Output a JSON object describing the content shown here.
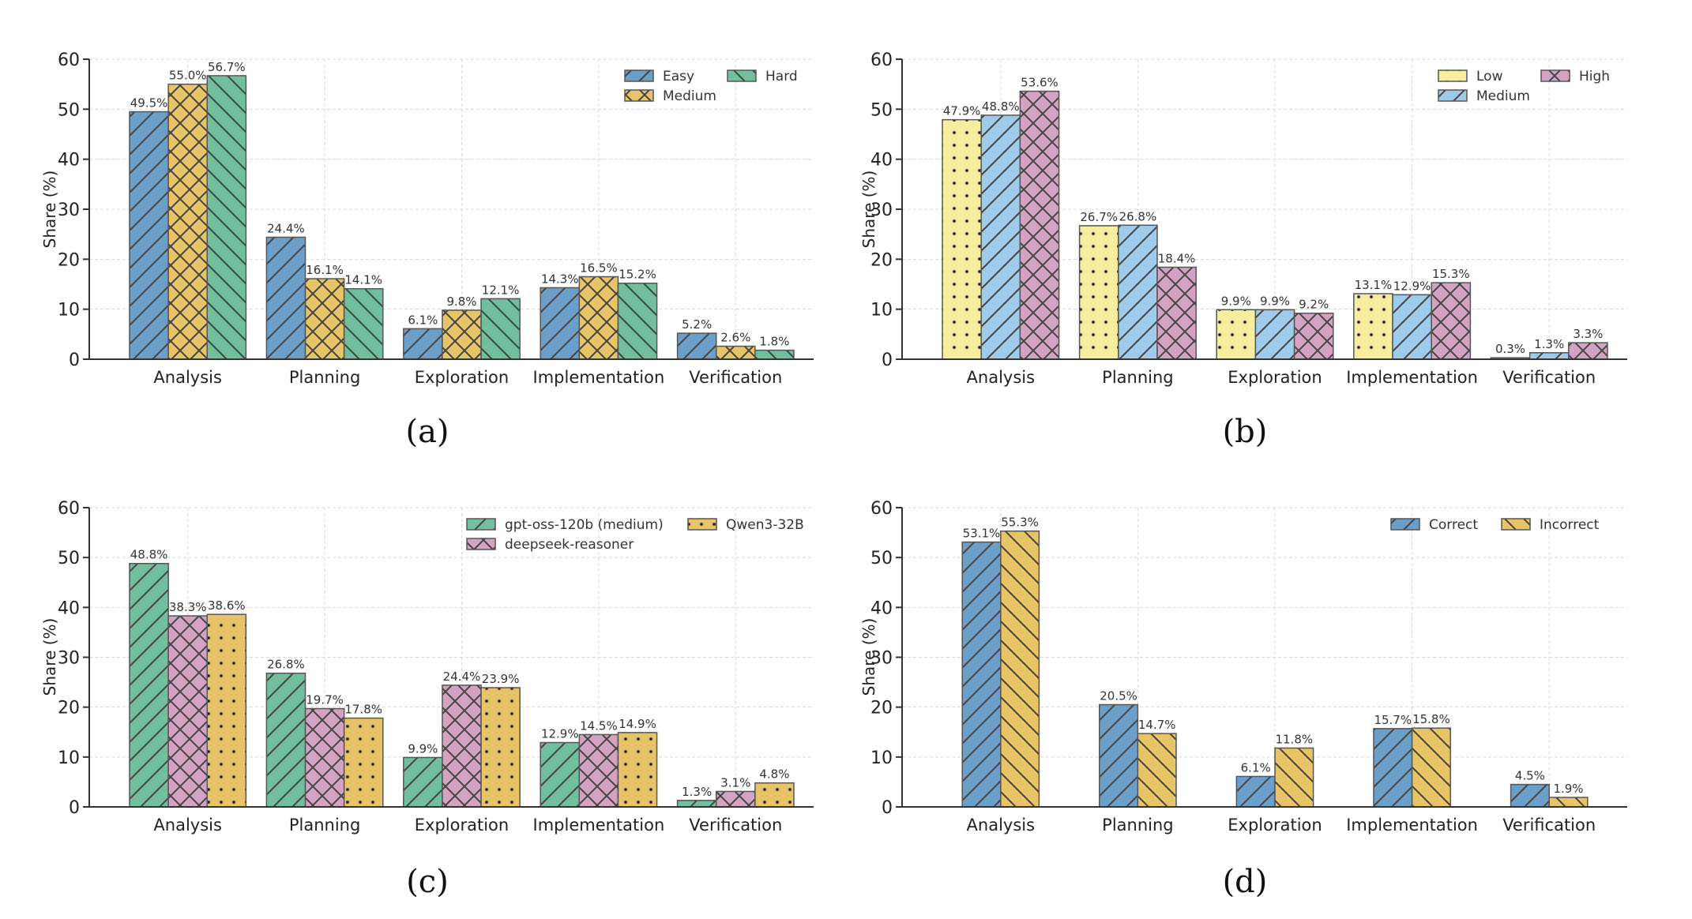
{
  "chart_data": [
    {
      "id": "a",
      "panel_label": "(a)",
      "type": "bar",
      "ylabel": "Share (%)",
      "xlabel": "",
      "ylim": [
        0,
        60
      ],
      "yticks": [
        0,
        10,
        20,
        30,
        40,
        50,
        60
      ],
      "grid": true,
      "legend_position": "top-right",
      "legend_columns": 2,
      "categories": [
        "Analysis",
        "Planning",
        "Exploration",
        "Implementation",
        "Verification"
      ],
      "series": [
        {
          "name": "Easy",
          "color": "#6a9fca",
          "hatch": "forward-diagonal",
          "values": [
            49.5,
            24.4,
            6.1,
            14.3,
            5.2
          ],
          "labels": [
            "49.5%",
            "24.4%",
            "6.1%",
            "14.3%",
            "5.2%"
          ]
        },
        {
          "name": "Medium",
          "color": "#e6c467",
          "hatch": "cross-diagonal",
          "values": [
            55.0,
            16.1,
            9.8,
            16.5,
            2.6
          ],
          "labels": [
            "55.0%",
            "16.1%",
            "9.8%",
            "16.5%",
            "2.6%"
          ]
        },
        {
          "name": "Hard",
          "color": "#72bfa0",
          "hatch": "back-diagonal",
          "values": [
            56.7,
            14.1,
            12.1,
            15.2,
            1.8
          ],
          "labels": [
            "56.7%",
            "14.1%",
            "12.1%",
            "15.2%",
            "1.8%"
          ]
        }
      ]
    },
    {
      "id": "b",
      "panel_label": "(b)",
      "type": "bar",
      "ylabel": "Share (%)",
      "xlabel": "",
      "ylim": [
        0,
        60
      ],
      "yticks": [
        0,
        10,
        20,
        30,
        40,
        50,
        60
      ],
      "grid": true,
      "legend_position": "top-right",
      "legend_columns": 2,
      "categories": [
        "Analysis",
        "Planning",
        "Exploration",
        "Implementation",
        "Verification"
      ],
      "series": [
        {
          "name": "Low",
          "color": "#f8eea0",
          "hatch": "dots",
          "values": [
            47.9,
            26.7,
            9.9,
            13.1,
            0.3
          ],
          "labels": [
            "47.9%",
            "26.7%",
            "9.9%",
            "13.1%",
            "0.3%"
          ]
        },
        {
          "name": "Medium",
          "color": "#9fcbeb",
          "hatch": "forward-diagonal",
          "values": [
            48.8,
            26.8,
            9.9,
            12.9,
            1.3
          ],
          "labels": [
            "48.8%",
            "26.8%",
            "9.9%",
            "12.9%",
            "1.3%"
          ]
        },
        {
          "name": "High",
          "color": "#d4a3c3",
          "hatch": "cross-diagonal",
          "values": [
            53.6,
            18.4,
            9.2,
            15.3,
            3.3
          ],
          "labels": [
            "53.6%",
            "18.4%",
            "9.2%",
            "15.3%",
            "3.3%"
          ]
        }
      ]
    },
    {
      "id": "c",
      "panel_label": "(c)",
      "type": "bar",
      "ylabel": "Share (%)",
      "xlabel": "",
      "ylim": [
        0,
        60
      ],
      "yticks": [
        0,
        10,
        20,
        30,
        40,
        50,
        60
      ],
      "grid": true,
      "legend_position": "top-right",
      "legend_columns": 2,
      "categories": [
        "Analysis",
        "Planning",
        "Exploration",
        "Implementation",
        "Verification"
      ],
      "series": [
        {
          "name": "gpt-oss-120b (medium)",
          "color": "#72bfa0",
          "hatch": "forward-diagonal",
          "values": [
            48.8,
            26.8,
            9.9,
            12.9,
            1.3
          ],
          "labels": [
            "48.8%",
            "26.8%",
            "9.9%",
            "12.9%",
            "1.3%"
          ]
        },
        {
          "name": "deepseek-reasoner",
          "color": "#d4a3c3",
          "hatch": "cross-diagonal",
          "values": [
            38.3,
            19.7,
            24.4,
            14.5,
            3.1
          ],
          "labels": [
            "38.3%",
            "19.7%",
            "24.4%",
            "14.5%",
            "3.1%"
          ]
        },
        {
          "name": "Qwen3-32B",
          "color": "#e6c467",
          "hatch": "dots",
          "values": [
            38.6,
            17.8,
            23.9,
            14.9,
            4.8
          ],
          "labels": [
            "38.6%",
            "17.8%",
            "23.9%",
            "14.9%",
            "4.8%"
          ]
        }
      ]
    },
    {
      "id": "d",
      "panel_label": "(d)",
      "type": "bar",
      "ylabel": "Share (%)",
      "xlabel": "",
      "ylim": [
        0,
        60
      ],
      "yticks": [
        0,
        10,
        20,
        30,
        40,
        50,
        60
      ],
      "grid": true,
      "legend_position": "top-right",
      "legend_columns": 2,
      "categories": [
        "Analysis",
        "Planning",
        "Exploration",
        "Implementation",
        "Verification"
      ],
      "series": [
        {
          "name": "Correct",
          "color": "#6a9fca",
          "hatch": "forward-diagonal",
          "values": [
            53.1,
            20.5,
            6.1,
            15.7,
            4.5
          ],
          "labels": [
            "53.1%",
            "20.5%",
            "6.1%",
            "15.7%",
            "4.5%"
          ]
        },
        {
          "name": "Incorrect",
          "color": "#e6c467",
          "hatch": "back-diagonal",
          "values": [
            55.3,
            14.7,
            11.8,
            15.8,
            1.9
          ],
          "labels": [
            "55.3%",
            "14.7%",
            "11.8%",
            "15.8%",
            "1.9%"
          ]
        }
      ]
    }
  ]
}
